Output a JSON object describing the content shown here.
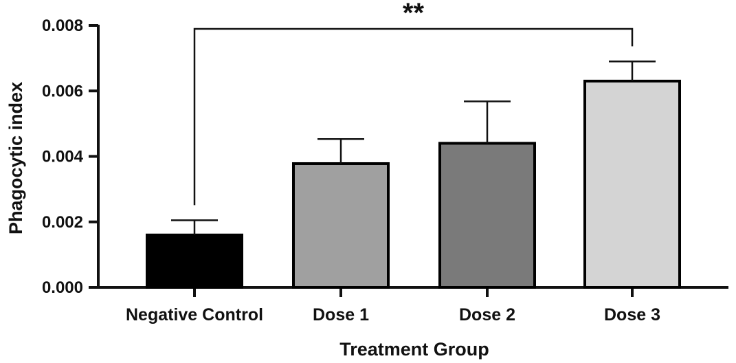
{
  "chart_data": {
    "type": "bar",
    "title": "",
    "xlabel": "Treatment Group",
    "ylabel": "Phagocytic index",
    "ylim": [
      0,
      0.008
    ],
    "yticks": [
      "0.000",
      "0.002",
      "0.004",
      "0.006",
      "0.008"
    ],
    "categories": [
      "Negative Control",
      "Dose 1",
      "Dose 2",
      "Dose 3"
    ],
    "values": [
      0.0016,
      0.00378,
      0.0044,
      0.0063
    ],
    "errors": [
      0.00045,
      0.00075,
      0.00128,
      0.0006
    ],
    "bar_colors": [
      "#000000",
      "#a0a0a0",
      "#7a7a7a",
      "#d4d4d4"
    ],
    "grid": false,
    "legend": "none",
    "annotations": [
      {
        "type": "significance-bracket",
        "from": "Negative Control",
        "to": "Dose 3",
        "label": "**"
      }
    ]
  }
}
